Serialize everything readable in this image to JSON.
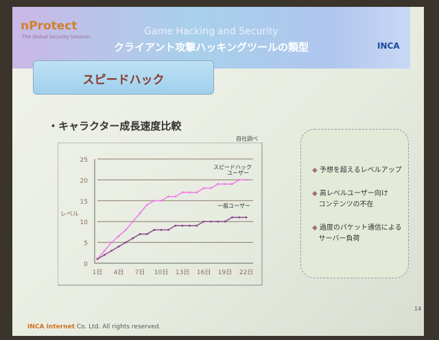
{
  "header": {
    "logo": "nProtect",
    "logo_sub": "The Global Security Solution",
    "title_en": "Game Hacking and Security",
    "title_jp": "クライアント攻撃ハッキングツールの類型",
    "company_logo": "INCA"
  },
  "section": {
    "title": "スピードハック"
  },
  "bullet": "・キャラクター成長速度比較",
  "source": "自社調べ",
  "chart_data": {
    "type": "line",
    "ylabel": "レベル",
    "ylim": [
      0,
      25
    ],
    "yticks": [
      0,
      5,
      10,
      15,
      20,
      25
    ],
    "xticks": [
      "1日",
      "4日",
      "7日",
      "10日",
      "13日",
      "16日",
      "19日",
      "22日"
    ],
    "x": [
      1,
      2,
      3,
      4,
      5,
      6,
      7,
      8,
      9,
      10,
      11,
      12,
      13,
      14,
      15,
      16,
      17,
      18,
      19,
      20,
      21,
      22
    ],
    "grid": "horizontal",
    "series": [
      {
        "name": "スピードハック ユーザー",
        "color": "#f07ae8",
        "values": [
          1,
          3,
          5,
          6.5,
          8,
          10,
          12,
          14,
          15,
          15,
          16,
          16,
          17,
          17,
          17,
          18,
          18,
          19,
          19,
          19,
          20,
          20
        ]
      },
      {
        "name": "一般ユーザー",
        "color": "#8a4a8a",
        "values": [
          1,
          2,
          3,
          4,
          5,
          6,
          7,
          7,
          8,
          8,
          8,
          9,
          9,
          9,
          9,
          10,
          10,
          10,
          10,
          11,
          11,
          11
        ]
      }
    ]
  },
  "box_items": [
    "予想を超えるレベルアップ",
    "高レベルユーザー向け",
    "コンテンツの不在",
    "過度のパケット通信による",
    "サーバー負荷"
  ],
  "page_number": "14",
  "footer": {
    "brand": "INCA Internet",
    "rest": " Co. Ltd. All rights reserved."
  }
}
